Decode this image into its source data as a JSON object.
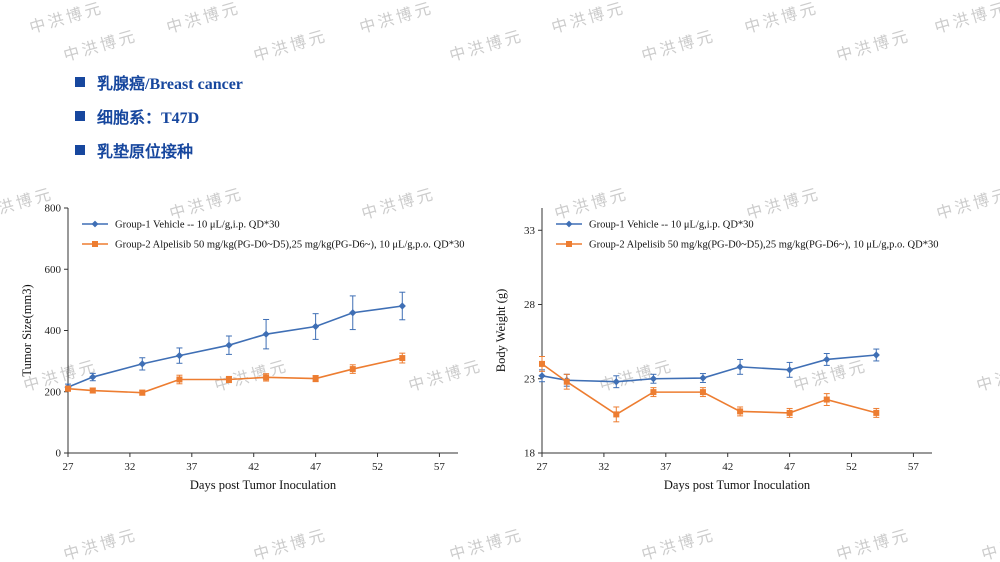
{
  "watermark": {
    "text": "中洪博元",
    "color": "#c7c7c7"
  },
  "bullets": [
    {
      "label": "乳腺癌/Breast cancer"
    },
    {
      "label": "细胞系：T47D"
    },
    {
      "label": "乳垫原位接种"
    }
  ],
  "colors": {
    "bullet_blue": "#17479e",
    "series_blue": "#3f6fb5",
    "series_orange": "#ed7d31",
    "axis": "#333333"
  },
  "chart_data": [
    {
      "type": "line",
      "title": "",
      "xlabel": "Days post Tumor Inoculation",
      "ylabel": "Tumor Size(mm3)",
      "xlim": [
        27,
        58.5
      ],
      "ylim": [
        0,
        800
      ],
      "xticks": [
        27,
        32,
        37,
        42,
        47,
        52,
        57
      ],
      "yticks": [
        0,
        200,
        400,
        600,
        800
      ],
      "grid": false,
      "legend_position": "top-left",
      "x": [
        27,
        29,
        33,
        36,
        40,
        43,
        47,
        50,
        54
      ],
      "series": [
        {
          "name": "Group-1 Vehicle -- 10 μL/g,i.p. QD*30",
          "marker": "diamond",
          "color": "#3f6fb5",
          "values": [
            215,
            248,
            291,
            318,
            352,
            388,
            413,
            458,
            480
          ],
          "errors": [
            10,
            12,
            20,
            25,
            30,
            48,
            42,
            55,
            45
          ]
        },
        {
          "name": "Group-2 Alpelisib  50 mg/kg(PG-D0~D5),25 mg/kg(PG-D6~), 10 μL/g,p.o. QD*30",
          "marker": "square",
          "color": "#ed7d31",
          "values": [
            210,
            204,
            197,
            240,
            240,
            247,
            243,
            274,
            310
          ],
          "errors": [
            8,
            8,
            8,
            14,
            10,
            12,
            10,
            14,
            16
          ]
        }
      ]
    },
    {
      "type": "line",
      "title": "",
      "xlabel": "Days post Tumor Inoculation",
      "ylabel": "Body Weight (g)",
      "xlim": [
        27,
        58.5
      ],
      "ylim": [
        18,
        34.5
      ],
      "xticks": [
        27,
        32,
        37,
        42,
        47,
        52,
        57
      ],
      "yticks": [
        18,
        23,
        28,
        33
      ],
      "grid": false,
      "legend_position": "top-left",
      "x": [
        27,
        29,
        33,
        36,
        40,
        43,
        47,
        50,
        54
      ],
      "series": [
        {
          "name": "Group-1 Vehicle -- 10 μL/g,i.p. QD*30",
          "marker": "diamond",
          "color": "#3f6fb5",
          "values": [
            23.2,
            22.9,
            22.8,
            23.0,
            23.05,
            23.8,
            23.6,
            24.3,
            24.6
          ],
          "errors": [
            0.4,
            0.4,
            0.4,
            0.3,
            0.3,
            0.5,
            0.5,
            0.4,
            0.4
          ]
        },
        {
          "name": "Group-2 Alpelisib  50 mg/kg(PG-D0~D5),25 mg/kg(PG-D6~), 10 μL/g,p.o. QD*30",
          "marker": "square",
          "color": "#ed7d31",
          "values": [
            24.0,
            22.8,
            20.6,
            22.1,
            22.1,
            20.8,
            20.7,
            21.6,
            20.7
          ],
          "errors": [
            0.5,
            0.5,
            0.5,
            0.3,
            0.3,
            0.3,
            0.3,
            0.4,
            0.3
          ]
        }
      ]
    }
  ]
}
